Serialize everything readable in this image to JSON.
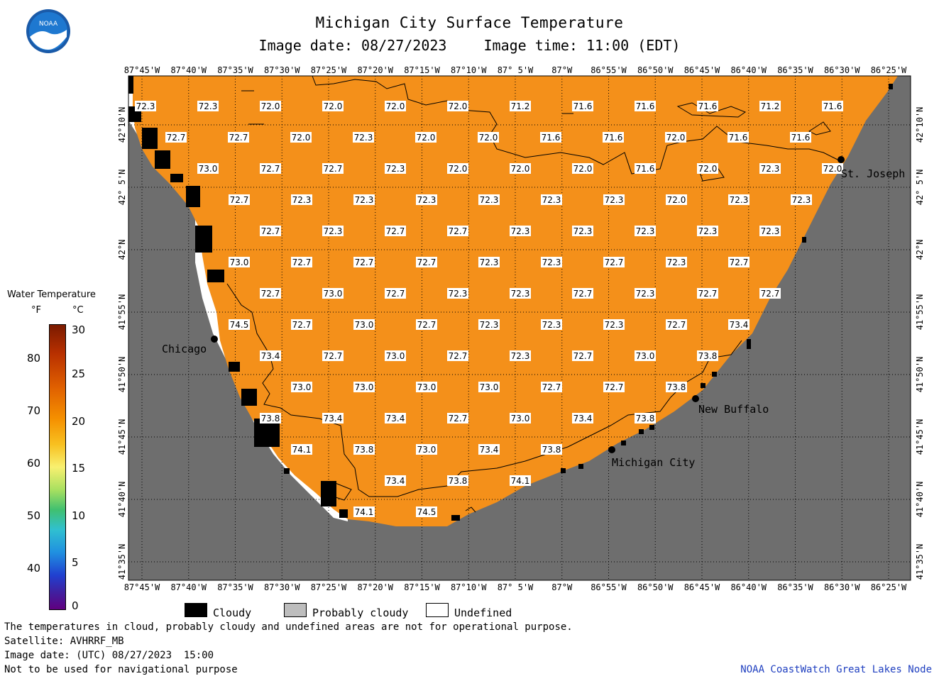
{
  "title": "Michigan City Surface Temperature",
  "image_date": "Image date: 08/27/2023",
  "image_time": "Image time: 11:00 (EDT)",
  "logo_text": "NOAA",
  "longitude_labels": [
    "87°45'W",
    "87°40'W",
    "87°35'W",
    "87°30'W",
    "87°25'W",
    "87°20'W",
    "87°15'W",
    "87°10'W",
    "87° 5'W",
    "87°W",
    "86°55'W",
    "86°50'W",
    "86°45'W",
    "86°40'W",
    "86°35'W",
    "86°30'W",
    "86°25'W"
  ],
  "latitude_labels": [
    "42°10'N",
    "42° 5'N",
    "42°N",
    "41°55'N",
    "41°50'N",
    "41°45'N",
    "41°40'N",
    "41°35'N"
  ],
  "cities": [
    "Chicago",
    "St. Joseph",
    "New Buffalo",
    "Michigan City"
  ],
  "temperature_rows": [
    [
      "72.3",
      "72.3",
      "72.0",
      "72.0",
      "72.0",
      "72.0",
      "71.2",
      "71.6",
      "71.6",
      "71.6",
      "71.2",
      "71.6"
    ],
    [
      "72.7",
      "72.7",
      "72.0",
      "72.3",
      "72.0",
      "72.0",
      "71.6",
      "71.6",
      "72.0",
      "71.6",
      "71.6"
    ],
    [
      "73.0",
      "72.7",
      "72.7",
      "72.3",
      "72.0",
      "72.0",
      "72.0",
      "71.6",
      "72.0",
      "72.3",
      "72.0"
    ],
    [
      "72.7",
      "72.3",
      "72.3",
      "72.3",
      "72.3",
      "72.3",
      "72.3",
      "72.0",
      "72.3",
      "72.3"
    ],
    [
      "72.7",
      "72.3",
      "72.7",
      "72.7",
      "72.3",
      "72.3",
      "72.3",
      "72.3",
      "72.3"
    ],
    [
      "73.0",
      "72.7",
      "72.7",
      "72.7",
      "72.3",
      "72.3",
      "72.7",
      "72.3",
      "72.7"
    ],
    [
      "72.7",
      "73.0",
      "72.7",
      "72.3",
      "72.3",
      "72.7",
      "72.3",
      "72.7",
      "72.7"
    ],
    [
      "74.5",
      "72.7",
      "73.0",
      "72.7",
      "72.3",
      "72.3",
      "72.3",
      "72.7",
      "73.4"
    ],
    [
      "73.4",
      "72.7",
      "73.0",
      "72.7",
      "72.3",
      "72.7",
      "73.0",
      "73.8"
    ],
    [
      "73.0",
      "73.0",
      "73.0",
      "73.0",
      "72.7",
      "72.7",
      "73.8"
    ],
    [
      "73.8",
      "73.4",
      "73.4",
      "72.7",
      "73.0",
      "73.4",
      "73.8"
    ],
    [
      "74.1",
      "73.8",
      "73.0",
      "73.4",
      "73.8"
    ],
    [
      "73.4",
      "73.8",
      "74.1"
    ],
    [
      "74.1",
      "74.5"
    ]
  ],
  "legend": {
    "title": "Water Temperature",
    "unit_f": "°F",
    "unit_c": "°C",
    "f_ticks": [
      "80",
      "70",
      "60",
      "50",
      "40"
    ],
    "c_ticks": [
      "30",
      "25",
      "20",
      "15",
      "10",
      "5",
      "0"
    ],
    "scale_colors": [
      "#7a1a00",
      "#e06000",
      "#f59000",
      "#f8f070",
      "#40c070",
      "#2090e0",
      "#600080"
    ]
  },
  "key": {
    "cloudy": "Cloudy",
    "probably_cloudy": "Probably cloudy",
    "undefined": "Undefined"
  },
  "footer": {
    "line1": "The temperatures in cloud, probably cloudy and undefined areas are not for operational purpose.",
    "line2": "Satellite: AVHRRF_MB",
    "line3": "Image date: (UTC) 08/27/2023  15:00",
    "line4": "Not to be used for navigational purpose",
    "credit": "NOAA CoastWatch Great Lakes Node"
  },
  "colors": {
    "water": "#f4901a",
    "land": "#6e6e6e",
    "cloud": "#000000",
    "undefined": "#ffffff",
    "credit": "#2040c0"
  }
}
